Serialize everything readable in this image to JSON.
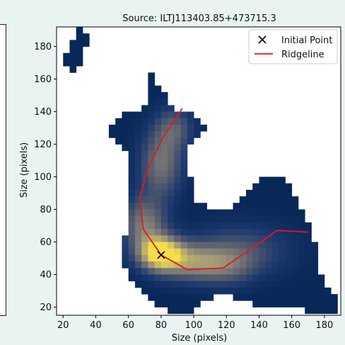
{
  "chart_data": {
    "type": "heatmap",
    "title": "Source: ILTJ113403.85+473715.3",
    "xlabel": "Size (pixels)",
    "ylabel": "Size (pixels)",
    "xlim": [
      16,
      190
    ],
    "ylim": [
      15,
      192
    ],
    "x_ticks": [
      20,
      40,
      60,
      80,
      100,
      120,
      140,
      160,
      180
    ],
    "y_ticks": [
      20,
      40,
      60,
      80,
      100,
      120,
      140,
      160,
      180
    ],
    "grid": false,
    "legend_position": "top-right",
    "colormap": "cividis",
    "pixel_size": 4,
    "mask_rows": [
      {
        "y": 190,
        "spans": [
          [
            28,
            32
          ]
        ]
      },
      {
        "y": 186,
        "spans": [
          [
            28,
            36
          ]
        ]
      },
      {
        "y": 182,
        "spans": [
          [
            24,
            36
          ]
        ]
      },
      {
        "y": 178,
        "spans": [
          [
            24,
            32
          ]
        ]
      },
      {
        "y": 174,
        "spans": [
          [
            20,
            32
          ]
        ]
      },
      {
        "y": 170,
        "spans": [
          [
            20,
            32
          ]
        ]
      },
      {
        "y": 166,
        "spans": [
          [
            24,
            28
          ]
        ]
      },
      {
        "y": 162,
        "spans": [
          [
            72,
            76
          ]
        ]
      },
      {
        "y": 158,
        "spans": [
          [
            72,
            76
          ]
        ]
      },
      {
        "y": 154,
        "spans": [
          [
            72,
            80
          ]
        ]
      },
      {
        "y": 150,
        "spans": [
          [
            72,
            84
          ]
        ]
      },
      {
        "y": 146,
        "spans": [
          [
            72,
            84
          ]
        ]
      },
      {
        "y": 142,
        "spans": [
          [
            68,
            88
          ]
        ]
      },
      {
        "y": 138,
        "spans": [
          [
            56,
            100
          ]
        ]
      },
      {
        "y": 134,
        "spans": [
          [
            52,
            104
          ]
        ]
      },
      {
        "y": 130,
        "spans": [
          [
            48,
            108
          ]
        ]
      },
      {
        "y": 126,
        "spans": [
          [
            48,
            104
          ]
        ]
      },
      {
        "y": 122,
        "spans": [
          [
            52,
            100
          ]
        ]
      },
      {
        "y": 118,
        "spans": [
          [
            56,
            96
          ]
        ]
      },
      {
        "y": 114,
        "spans": [
          [
            60,
            96
          ]
        ]
      },
      {
        "y": 110,
        "spans": [
          [
            60,
            96
          ]
        ]
      },
      {
        "y": 106,
        "spans": [
          [
            60,
            96
          ]
        ]
      },
      {
        "y": 102,
        "spans": [
          [
            60,
            96
          ]
        ]
      },
      {
        "y": 98,
        "spans": [
          [
            60,
            100
          ]
        ],
        "extra": [
          [
            140,
            156
          ]
        ]
      },
      {
        "y": 94,
        "spans": [
          [
            60,
            100
          ]
        ],
        "extra": [
          [
            136,
            160
          ]
        ]
      },
      {
        "y": 90,
        "spans": [
          [
            60,
            100
          ]
        ],
        "extra": [
          [
            132,
            160
          ]
        ]
      },
      {
        "y": 86,
        "spans": [
          [
            60,
            100
          ]
        ],
        "extra": [
          [
            128,
            164
          ]
        ]
      },
      {
        "y": 82,
        "spans": [
          [
            60,
            108
          ]
        ],
        "extra": [
          [
            124,
            164
          ]
        ]
      },
      {
        "y": 78,
        "spans": [
          [
            60,
            168
          ]
        ]
      },
      {
        "y": 74,
        "spans": [
          [
            60,
            168
          ]
        ]
      },
      {
        "y": 70,
        "spans": [
          [
            60,
            172
          ]
        ]
      },
      {
        "y": 66,
        "spans": [
          [
            60,
            172
          ]
        ]
      },
      {
        "y": 62,
        "spans": [
          [
            56,
            172
          ]
        ]
      },
      {
        "y": 58,
        "spans": [
          [
            56,
            176
          ]
        ]
      },
      {
        "y": 54,
        "spans": [
          [
            56,
            176
          ]
        ]
      },
      {
        "y": 50,
        "spans": [
          [
            56,
            176
          ]
        ]
      },
      {
        "y": 46,
        "spans": [
          [
            56,
            176
          ]
        ]
      },
      {
        "y": 42,
        "spans": [
          [
            60,
            176
          ]
        ]
      },
      {
        "y": 38,
        "spans": [
          [
            60,
            180
          ]
        ]
      },
      {
        "y": 34,
        "spans": [
          [
            64,
            180
          ]
        ]
      },
      {
        "y": 30,
        "spans": [
          [
            68,
            184
          ]
        ]
      },
      {
        "y": 26,
        "spans": [
          [
            72,
            112
          ]
        ],
        "extra": [
          [
            124,
            188
          ]
        ]
      },
      {
        "y": 22,
        "spans": [
          [
            76,
            104
          ]
        ],
        "extra": [
          [
            136,
            188
          ]
        ]
      },
      {
        "y": 18,
        "spans": [
          [
            84,
            100
          ]
        ],
        "extra": [
          [
            168,
            188
          ]
        ]
      }
    ],
    "blobs": [
      {
        "x": 80,
        "y": 53,
        "sx": 9,
        "sy": 7,
        "amp": 1.0
      },
      {
        "x": 98,
        "y": 48,
        "sx": 14,
        "sy": 8,
        "amp": 0.55
      },
      {
        "x": 70,
        "y": 70,
        "sx": 9,
        "sy": 12,
        "amp": 0.55
      },
      {
        "x": 80,
        "y": 108,
        "sx": 9,
        "sy": 14,
        "amp": 0.5
      },
      {
        "x": 88,
        "y": 130,
        "sx": 8,
        "sy": 9,
        "amp": 0.35
      },
      {
        "x": 130,
        "y": 55,
        "sx": 20,
        "sy": 11,
        "amp": 0.3
      },
      {
        "x": 120,
        "y": 45,
        "sx": 12,
        "sy": 8,
        "amp": 0.3
      }
    ],
    "series": [
      {
        "name": "Initial Point",
        "type": "scatter",
        "marker": "x",
        "color": "#000000",
        "x": [
          80
        ],
        "y": [
          52
        ]
      },
      {
        "name": "Ridgeline",
        "type": "line",
        "color": "#e8161b",
        "x": [
          93,
          81,
          72,
          67,
          69,
          80,
          96,
          118,
          134,
          151,
          170
        ],
        "y": [
          142,
          124,
          105,
          88,
          68,
          52,
          43,
          44,
          55,
          67,
          66
        ]
      }
    ]
  }
}
